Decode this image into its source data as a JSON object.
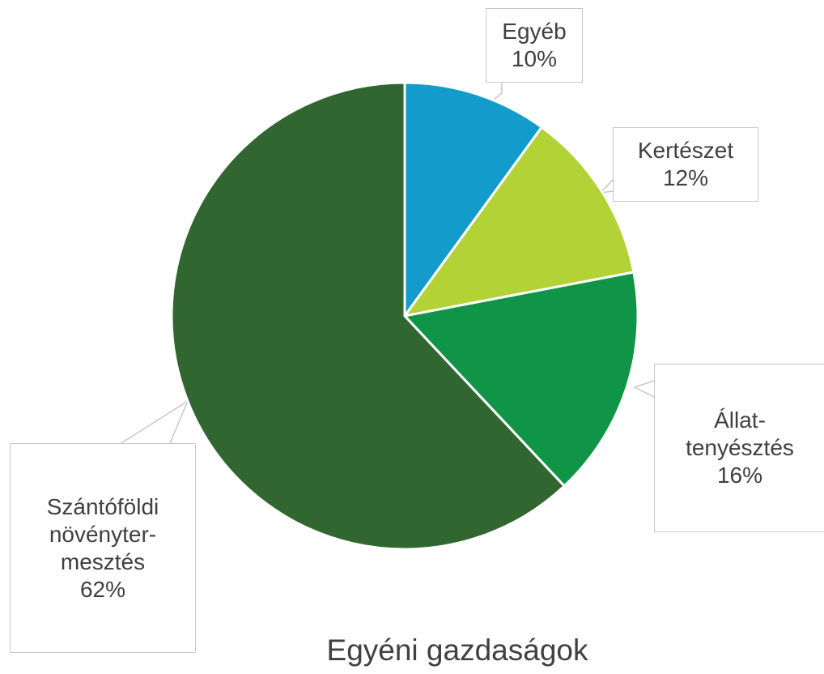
{
  "chart_data": {
    "type": "pie",
    "title": "Egyéni gazdaságok",
    "categories": [
      "Egyéb",
      "Kertészet",
      "Állat-\ntenyésztés",
      "Szántóföldi\nnövényter-\nmesztés"
    ],
    "values": [
      10,
      12,
      16,
      62
    ],
    "value_labels": [
      "10%",
      "12%",
      "16%",
      "62%"
    ],
    "colors": [
      "#129bcb",
      "#b2d235",
      "#109447",
      "#316631"
    ]
  }
}
